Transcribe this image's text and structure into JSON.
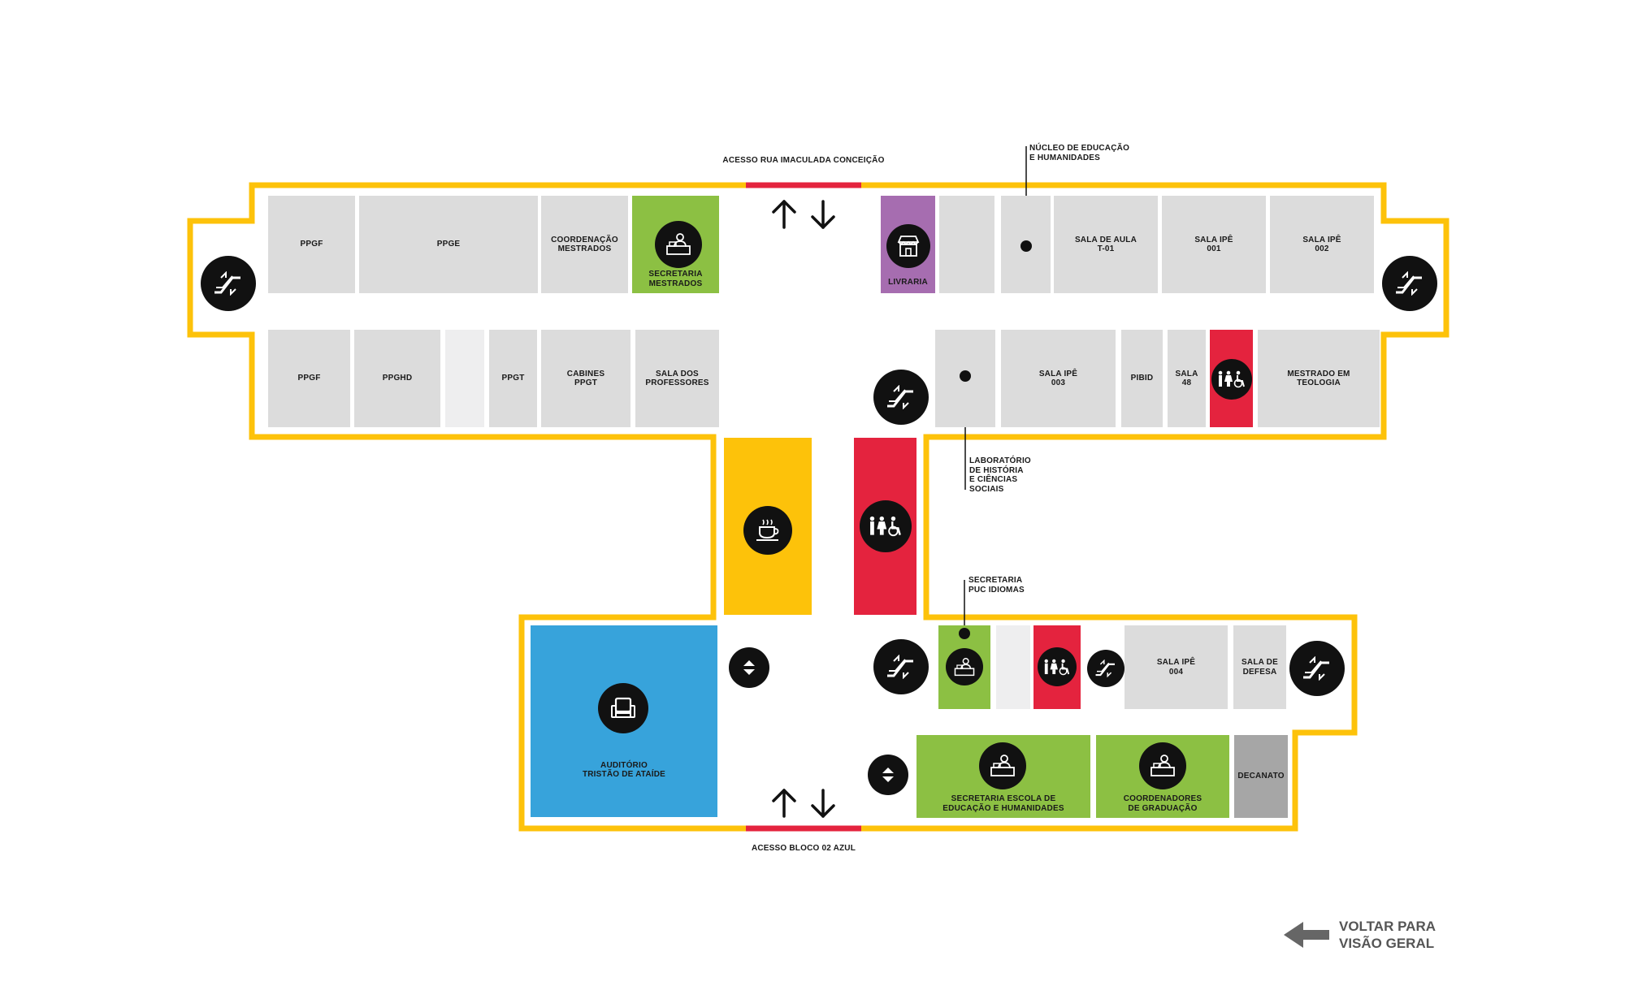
{
  "labels": {
    "acesso_top": "ACESSO RUA IMACULADA CONCEIÇÃO",
    "acesso_bottom": "ACESSO BLOCO 02 AZUL",
    "nucleo": "NÚCLEO DE EDUCAÇÃO\nE HUMANIDADES",
    "laboratorio": "LABORATÓRIO\nDE HISTÓRIA\nE CIÊNCIAS\nSOCIAIS",
    "secretaria_puc": "SECRETARIA\nPUC IDIOMAS"
  },
  "rooms": {
    "ppgf_top": "PPGF",
    "ppge": "PPGE",
    "coord_mestrados": "COORDENAÇÃO\nMESTRADOS",
    "secretaria_mestrados": "SECRETARIA\nMESTRADOS",
    "livraria": "LIVRARIA",
    "sala_aula_t01": "SALA DE AULA\nT-01",
    "sala_ipe_001": "SALA IPÊ\n001",
    "sala_ipe_002": "SALA IPÊ\n002",
    "ppgf_bottom": "PPGF",
    "ppghd": "PPGHD",
    "ppgt": "PPGT",
    "cabines_ppgt": "CABINES\nPPGT",
    "sala_professores": "SALA DOS\nPROFESSORES",
    "sala_ipe_003": "SALA IPÊ\n003",
    "pibid": "PIBID",
    "sala_48": "SALA\n48",
    "mestrado_teologia": "MESTRADO EM\nTEOLOGIA",
    "auditorio": "AUDITÓRIO\nTRISTÃO DE ATAÍDE",
    "sala_ipe_004": "SALA IPÊ\n004",
    "sala_defesa": "SALA DE\nDEFESA",
    "secretaria_escola": "SECRETARIA ESCOLA DE\nEDUCAÇÃO E HUMANIDADES",
    "coordenadores": "COORDENADORES\nDE GRADUAÇÃO",
    "decanato": "DECANATO"
  },
  "back_button": "VOLTAR PARA\nVISÃO GERAL",
  "colors": {
    "wall": "#fdc20a",
    "access": "#e4233e",
    "room_gray": "#dcdcdc",
    "green": "#8cc043",
    "purple": "#a66db0",
    "red": "#e4233e",
    "yellow": "#fdc20a",
    "blue": "#37a3db",
    "icon": "#111111"
  },
  "icons": [
    "escalator-icon",
    "elevator-icon",
    "restroom-icon",
    "coffee-icon",
    "reception-desk-icon",
    "store-icon",
    "auditorium-seat-icon",
    "up-down-arrows-icon",
    "back-arrow-icon"
  ]
}
